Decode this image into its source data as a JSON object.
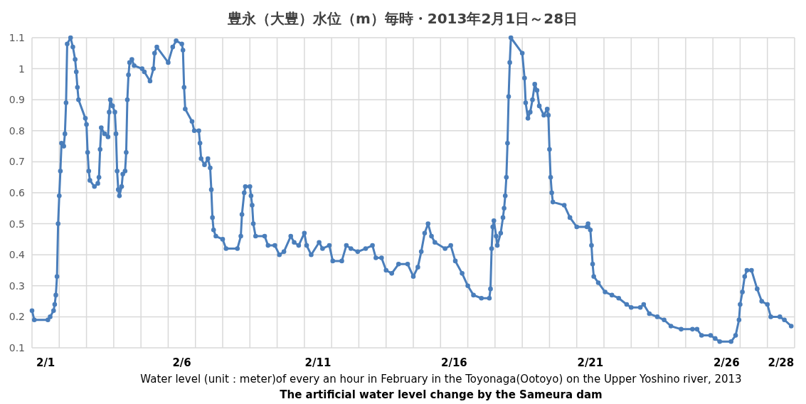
{
  "chart_data": {
    "type": "line",
    "title": "豊永（大豊）水位（m）毎時・2013年2月1日～28日",
    "annotations": [
      "Water level (unit：meter)of every an hour in February in the Toyonaga(Ootoyo) on the Upper Yoshino river, 2013",
      "The artificial water level change by the Sameura dam"
    ],
    "x": [
      "2013-02-01T00:00",
      "2013-02-01T02:00",
      "2013-02-01T14:00",
      "2013-02-01T16:00",
      "2013-02-01T19:00",
      "2013-02-01T20:00",
      "2013-02-01T21:00",
      "2013-02-01T22:00",
      "2013-02-01T23:00",
      "2013-02-02T00:00",
      "2013-02-02T01:00",
      "2013-02-02T02:00",
      "2013-02-02T04:00",
      "2013-02-02T05:00",
      "2013-02-02T06:00",
      "2013-02-02T07:00",
      "2013-02-02T10:00",
      "2013-02-02T12:00",
      "2013-02-02T14:00",
      "2013-02-02T15:00",
      "2013-02-02T16:00",
      "2013-02-02T17:00",
      "2013-02-02T23:00",
      "2013-02-03T00:00",
      "2013-02-03T01:00",
      "2013-02-03T02:00",
      "2013-02-03T03:00",
      "2013-02-03T07:00",
      "2013-02-03T10:00",
      "2013-02-03T11:00",
      "2013-02-03T12:00",
      "2013-02-03T13:00",
      "2013-02-03T16:00",
      "2013-02-03T19:00",
      "2013-02-03T20:00",
      "2013-02-03T21:00",
      "2013-02-03T23:00",
      "2013-02-04T01:00",
      "2013-02-04T02:00",
      "2013-02-04T03:00",
      "2013-02-04T04:00",
      "2013-02-04T05:00",
      "2013-02-04T07:00",
      "2013-02-04T08:00",
      "2013-02-04T10:00",
      "2013-02-04T11:00",
      "2013-02-04T12:00",
      "2013-02-04T13:00",
      "2013-02-04T14:00",
      "2013-02-04T16:00",
      "2013-02-04T18:00",
      "2013-02-05T01:00",
      "2013-02-05T03:00",
      "2013-02-05T08:00",
      "2013-02-05T11:00",
      "2013-02-05T12:00",
      "2013-02-05T14:00",
      "2013-02-06T00:00",
      "2013-02-06T04:00",
      "2013-02-06T07:00",
      "2013-02-06T12:00",
      "2013-02-06T13:00",
      "2013-02-06T14:00",
      "2013-02-06T15:00",
      "2013-02-06T21:00",
      "2013-02-06T23:00",
      "2013-02-07T03:00",
      "2013-02-07T04:00",
      "2013-02-07T05:00",
      "2013-02-07T08:00",
      "2013-02-07T11:00",
      "2013-02-07T13:00",
      "2013-02-07T14:00",
      "2013-02-07T15:00",
      "2013-02-07T16:00",
      "2013-02-07T18:00",
      "2013-02-08T00:00",
      "2013-02-08T03:00",
      "2013-02-08T13:00",
      "2013-02-08T16:00",
      "2013-02-08T17:00",
      "2013-02-08T19:00",
      "2013-02-08T20:00",
      "2013-02-09T00:00",
      "2013-02-09T01:00",
      "2013-02-09T02:00",
      "2013-02-09T03:00",
      "2013-02-09T05:00",
      "2013-02-09T13:00",
      "2013-02-09T16:00",
      "2013-02-09T22:00",
      "2013-02-10T02:00",
      "2013-02-10T06:00",
      "2013-02-10T12:00",
      "2013-02-10T15:00",
      "2013-02-10T19:00",
      "2013-02-11T00:00",
      "2013-02-11T02:00",
      "2013-02-11T06:00",
      "2013-02-11T13:00",
      "2013-02-11T16:00",
      "2013-02-11T22:00",
      "2013-02-12T01:00",
      "2013-02-12T09:00",
      "2013-02-12T13:00",
      "2013-02-12T17:00",
      "2013-02-12T23:00",
      "2013-02-13T06:00",
      "2013-02-13T12:00",
      "2013-02-13T15:00",
      "2013-02-13T20:00",
      "2013-02-14T00:00",
      "2013-02-14T05:00",
      "2013-02-14T11:00",
      "2013-02-14T19:00",
      "2013-02-15T00:00",
      "2013-02-15T04:00",
      "2013-02-15T07:00",
      "2013-02-15T10:00",
      "2013-02-15T13:00",
      "2013-02-15T16:00",
      "2013-02-15T19:00",
      "2013-02-16T04:00",
      "2013-02-16T09:00",
      "2013-02-16T13:00",
      "2013-02-16T19:00",
      "2013-02-17T00:00",
      "2013-02-17T05:00",
      "2013-02-17T12:00",
      "2013-02-17T19:00",
      "2013-02-17T20:00",
      "2013-02-17T21:00",
      "2013-02-17T22:00",
      "2013-02-17T23:00",
      "2013-02-18T01:00",
      "2013-02-18T02:00",
      "2013-02-18T05:00",
      "2013-02-18T07:00",
      "2013-02-18T08:00",
      "2013-02-18T09:00",
      "2013-02-18T10:00",
      "2013-02-18T11:00",
      "2013-02-18T12:00",
      "2013-02-18T13:00",
      "2013-02-18T14:00",
      "2013-02-19T00:00",
      "2013-02-19T02:00",
      "2013-02-19T03:00",
      "2013-02-19T05:00",
      "2013-02-19T07:00",
      "2013-02-19T09:00",
      "2013-02-19T11:00",
      "2013-02-19T13:00",
      "2013-02-19T15:00",
      "2013-02-19T19:00",
      "2013-02-19T22:00",
      "2013-02-19T23:00",
      "2013-02-20T00:00",
      "2013-02-20T01:00",
      "2013-02-20T02:00",
      "2013-02-20T03:00",
      "2013-02-20T13:00",
      "2013-02-20T18:00",
      "2013-02-21T00:00",
      "2013-02-21T09:00",
      "2013-02-21T10:00",
      "2013-02-21T12:00",
      "2013-02-21T13:00",
      "2013-02-21T14:00",
      "2013-02-21T15:00",
      "2013-02-21T19:00",
      "2013-02-22T01:00",
      "2013-02-22T07:00",
      "2013-02-22T13:00",
      "2013-02-22T20:00",
      "2013-02-23T00:00",
      "2013-02-23T08:00",
      "2013-02-23T11:00",
      "2013-02-23T16:00",
      "2013-02-23T23:00",
      "2013-02-24T05:00",
      "2013-02-24T11:00",
      "2013-02-24T20:00",
      "2013-02-25T06:00",
      "2013-02-25T10:00",
      "2013-02-25T14:00",
      "2013-02-25T22:00",
      "2013-02-26T02:00",
      "2013-02-26T06:00",
      "2013-02-26T16:00",
      "2013-02-26T20:00",
      "2013-02-26T23:00",
      "2013-02-27T00:00",
      "2013-02-27T02:00",
      "2013-02-27T04:00",
      "2013-02-27T06:00",
      "2013-02-27T10:00",
      "2013-02-27T15:00",
      "2013-02-27T19:00",
      "2013-02-28T00:00",
      "2013-02-28T03:00",
      "2013-02-28T11:00",
      "2013-02-28T15:00",
      "2013-02-28T21:00"
    ],
    "values": [
      0.22,
      0.19,
      0.19,
      0.2,
      0.22,
      0.24,
      0.27,
      0.33,
      0.5,
      0.59,
      0.67,
      0.76,
      0.75,
      0.79,
      0.89,
      1.08,
      1.1,
      1.07,
      1.03,
      0.99,
      0.94,
      0.9,
      0.84,
      0.82,
      0.73,
      0.67,
      0.64,
      0.62,
      0.63,
      0.65,
      0.74,
      0.81,
      0.79,
      0.78,
      0.86,
      0.9,
      0.88,
      0.86,
      0.79,
      0.67,
      0.61,
      0.59,
      0.62,
      0.66,
      0.67,
      0.73,
      0.9,
      0.98,
      1.02,
      1.03,
      1.01,
      1.0,
      0.99,
      0.96,
      1.0,
      1.05,
      1.07,
      1.02,
      1.07,
      1.09,
      1.08,
      1.06,
      0.94,
      0.87,
      0.83,
      0.8,
      0.8,
      0.76,
      0.71,
      0.69,
      0.71,
      0.68,
      0.61,
      0.52,
      0.48,
      0.46,
      0.45,
      0.42,
      0.42,
      0.46,
      0.53,
      0.6,
      0.62,
      0.62,
      0.59,
      0.56,
      0.5,
      0.46,
      0.46,
      0.43,
      0.43,
      0.4,
      0.41,
      0.46,
      0.44,
      0.43,
      0.47,
      0.43,
      0.4,
      0.44,
      0.42,
      0.43,
      0.38,
      0.38,
      0.43,
      0.42,
      0.41,
      0.42,
      0.43,
      0.39,
      0.39,
      0.35,
      0.34,
      0.37,
      0.37,
      0.33,
      0.36,
      0.41,
      0.47,
      0.5,
      0.46,
      0.44,
      0.42,
      0.43,
      0.38,
      0.34,
      0.3,
      0.27,
      0.26,
      0.26,
      0.29,
      0.42,
      0.49,
      0.51,
      0.46,
      0.43,
      0.47,
      0.52,
      0.55,
      0.59,
      0.65,
      0.76,
      0.91,
      1.02,
      1.1,
      1.05,
      0.97,
      0.89,
      0.84,
      0.86,
      0.9,
      0.95,
      0.93,
      0.88,
      0.85,
      0.87,
      0.85,
      0.74,
      0.65,
      0.6,
      0.57,
      0.56,
      0.52,
      0.49,
      0.49,
      0.5,
      0.48,
      0.43,
      0.37,
      0.33,
      0.31,
      0.28,
      0.27,
      0.26,
      0.24,
      0.23,
      0.23,
      0.24,
      0.21,
      0.2,
      0.19,
      0.17,
      0.16,
      0.16,
      0.16,
      0.14,
      0.14,
      0.13,
      0.12,
      0.12,
      0.14,
      0.19,
      0.24,
      0.28,
      0.33,
      0.35,
      0.35,
      0.29,
      0.25,
      0.24,
      0.2,
      0.2,
      0.19,
      0.17
    ],
    "color": "#4a7ebb",
    "marker": "circle",
    "line_style": "solid",
    "grid": true,
    "xlim": [
      "2013-02-01T00:00",
      "2013-03-01T00:00"
    ],
    "xticks": [
      {
        "value": "2013-02-01T00:00",
        "label": null
      },
      {
        "value": "2013-02-01T12:00",
        "label": "2/1"
      },
      {
        "value": "2013-02-02T00:00",
        "label": null
      },
      {
        "value": "2013-02-03T00:00",
        "label": null
      },
      {
        "value": "2013-02-04T00:00",
        "label": null
      },
      {
        "value": "2013-02-05T00:00",
        "label": null
      },
      {
        "value": "2013-02-06T00:00",
        "label": null
      },
      {
        "value": "2013-02-06T12:00",
        "label": "2/6"
      },
      {
        "value": "2013-02-07T00:00",
        "label": null
      },
      {
        "value": "2013-02-08T00:00",
        "label": null
      },
      {
        "value": "2013-02-09T00:00",
        "label": null
      },
      {
        "value": "2013-02-10T00:00",
        "label": null
      },
      {
        "value": "2013-02-11T00:00",
        "label": null
      },
      {
        "value": "2013-02-11T12:00",
        "label": "2/11"
      },
      {
        "value": "2013-02-12T00:00",
        "label": null
      },
      {
        "value": "2013-02-13T00:00",
        "label": null
      },
      {
        "value": "2013-02-14T00:00",
        "label": null
      },
      {
        "value": "2013-02-15T00:00",
        "label": null
      },
      {
        "value": "2013-02-16T00:00",
        "label": null
      },
      {
        "value": "2013-02-16T12:00",
        "label": "2/16"
      },
      {
        "value": "2013-02-17T00:00",
        "label": null
      },
      {
        "value": "2013-02-18T00:00",
        "label": null
      },
      {
        "value": "2013-02-19T00:00",
        "label": null
      },
      {
        "value": "2013-02-20T00:00",
        "label": null
      },
      {
        "value": "2013-02-21T00:00",
        "label": null
      },
      {
        "value": "2013-02-21T12:00",
        "label": "2/21"
      },
      {
        "value": "2013-02-22T00:00",
        "label": null
      },
      {
        "value": "2013-02-23T00:00",
        "label": null
      },
      {
        "value": "2013-02-24T00:00",
        "label": null
      },
      {
        "value": "2013-02-25T00:00",
        "label": null
      },
      {
        "value": "2013-02-26T00:00",
        "label": null
      },
      {
        "value": "2013-02-26T12:00",
        "label": "2/26"
      },
      {
        "value": "2013-02-27T00:00",
        "label": null
      },
      {
        "value": "2013-02-28T00:00",
        "label": null
      },
      {
        "value": "2013-02-28T12:00",
        "label": "2/28"
      },
      {
        "value": "2013-03-01T00:00",
        "label": null
      }
    ],
    "ylim": [
      0.1,
      1.1
    ],
    "yticks": [
      0.1,
      0.2,
      0.3,
      0.4,
      0.5,
      0.6,
      0.7,
      0.8,
      0.9,
      1,
      1.1
    ]
  }
}
